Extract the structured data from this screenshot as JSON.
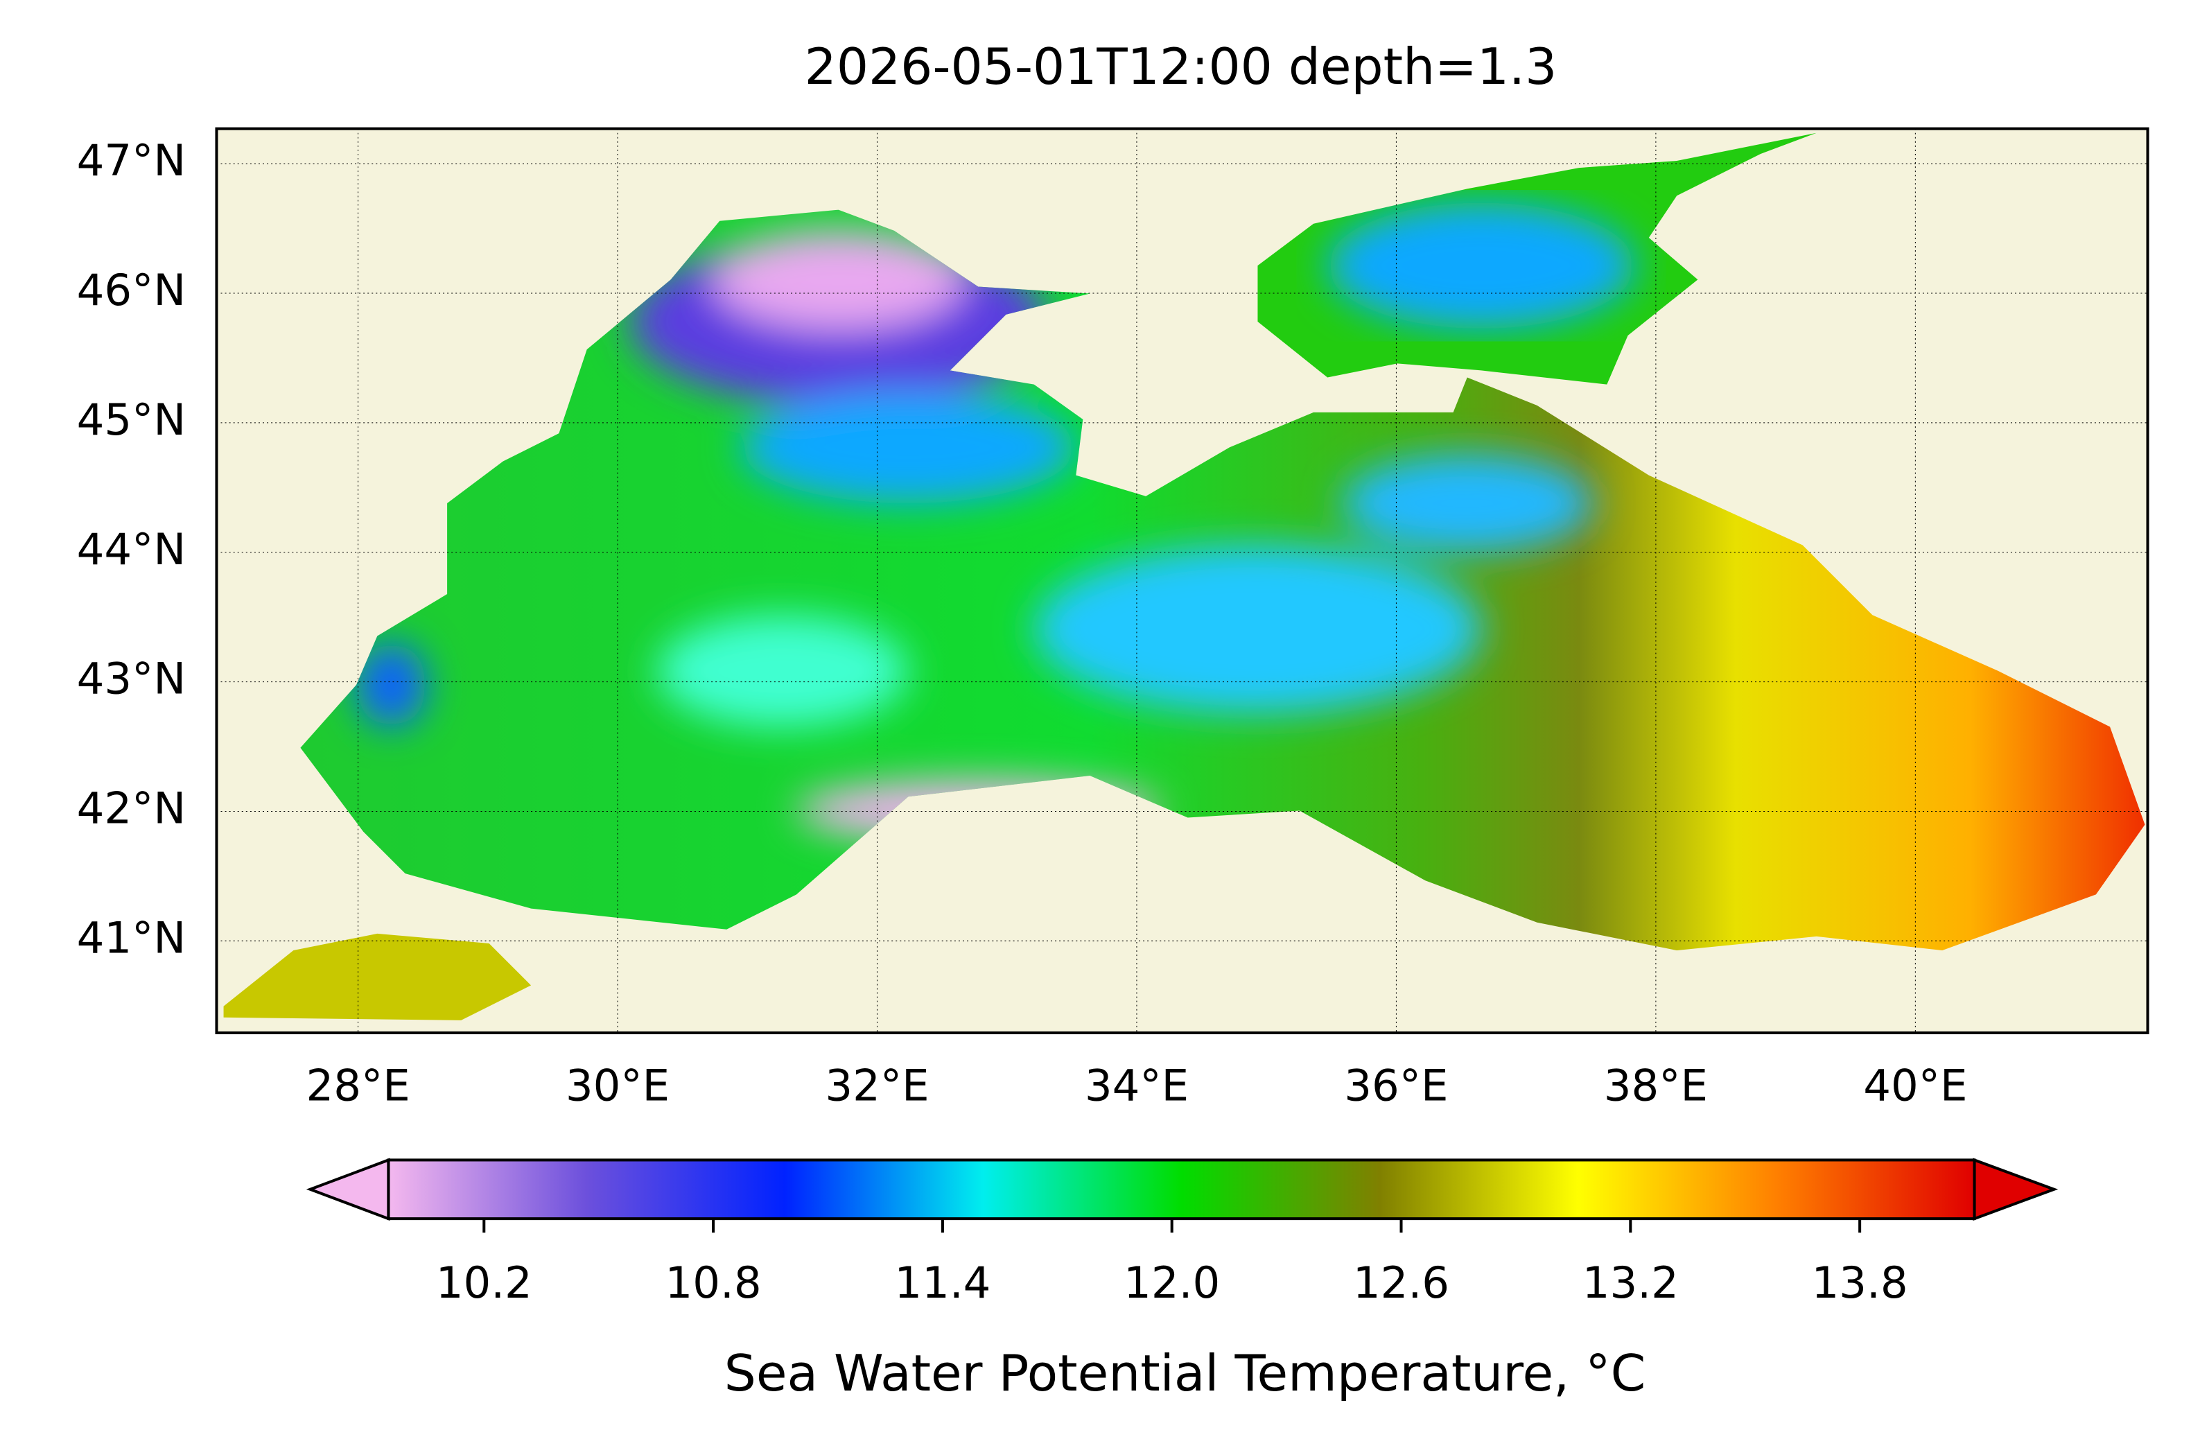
{
  "map": {
    "title": "2026-05-01T12:00 depth=1.3",
    "lonlim": [
      26.91,
      41.79
    ],
    "latlim": [
      40.29,
      47.27
    ],
    "lon_ticks": [
      {
        "value": 28,
        "label": "28°E"
      },
      {
        "value": 30,
        "label": "30°E"
      },
      {
        "value": 32,
        "label": "32°E"
      },
      {
        "value": 34,
        "label": "34°E"
      },
      {
        "value": 36,
        "label": "36°E"
      },
      {
        "value": 38,
        "label": "38°E"
      },
      {
        "value": 40,
        "label": "40°E"
      }
    ],
    "lat_ticks": [
      {
        "value": 41,
        "label": "41°N"
      },
      {
        "value": 42,
        "label": "42°N"
      },
      {
        "value": 43,
        "label": "43°N"
      },
      {
        "value": 44,
        "label": "44°N"
      },
      {
        "value": 45,
        "label": "45°N"
      },
      {
        "value": 46,
        "label": "46°N"
      },
      {
        "value": 47,
        "label": "47°N"
      }
    ],
    "grid": true,
    "colorbar": {
      "label": "Sea Water Potential Temperature, °C",
      "clim": [
        9.95,
        14.1
      ],
      "colors": [
        "#f4b8ee",
        "#6c50dc",
        "#0022ff",
        "#00eeee",
        "#00dd00",
        "#808000",
        "#ffff00",
        "#ff8000",
        "#e00000"
      ],
      "ticks": [
        10.2,
        10.8,
        11.4,
        {
          "value": 12,
          "label": "12.0"
        },
        12.6,
        13.2,
        13.8
      ]
    }
  }
}
